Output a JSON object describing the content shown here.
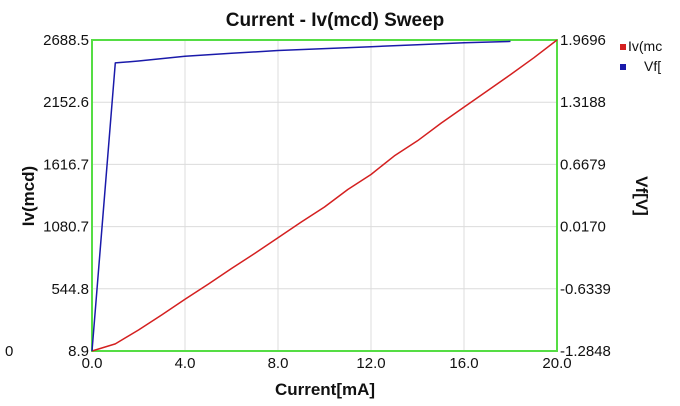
{
  "chart_data": {
    "type": "line",
    "title": "Current - Iv(mcd) Sweep",
    "xlabel": "Current[mA]",
    "ylabel": "Iv(mcd)",
    "y2label": "Vf[V]",
    "xlim": [
      0,
      20
    ],
    "ylim": [
      8.9,
      2688.5
    ],
    "y2lim": [
      -1.2848,
      1.9696
    ],
    "x_ticks": [
      "0.0",
      "4.0",
      "8.0",
      "12.0",
      "16.0",
      "20.0"
    ],
    "y_ticks": [
      "8.9",
      "544.8",
      "1080.7",
      "1616.7",
      "2152.6",
      "2688.5"
    ],
    "y2_ticks": [
      "-1.2848",
      "-0.6339",
      "0.0170",
      "0.6679",
      "1.3188",
      "1.9696"
    ],
    "stray_label": "0",
    "grid": true,
    "legend_position": "top-right",
    "colors": {
      "plot_border": "#55dd44",
      "grid": "#dcdcdc"
    },
    "series": [
      {
        "name": "Iv(mc",
        "axis": "left",
        "color": "#d42020",
        "x": [
          0,
          1,
          2,
          3,
          4,
          5,
          6,
          7,
          8,
          9,
          10,
          11,
          12,
          13,
          14,
          15,
          16,
          17,
          18,
          19,
          20
        ],
        "y": [
          8.9,
          70,
          190,
          320,
          455,
          585,
          720,
          850,
          985,
          1120,
          1250,
          1400,
          1530,
          1690,
          1820,
          1970,
          2110,
          2250,
          2390,
          2535,
          2688.5
        ]
      },
      {
        "name": "Vf[",
        "axis": "right",
        "color": "#1a1aaa",
        "x": [
          0,
          1,
          2,
          4,
          6,
          8,
          10,
          12,
          14,
          16,
          18
        ],
        "y": [
          -1.2848,
          1.73,
          1.75,
          1.8,
          1.83,
          1.86,
          1.88,
          1.9,
          1.92,
          1.94,
          1.955
        ]
      }
    ]
  }
}
